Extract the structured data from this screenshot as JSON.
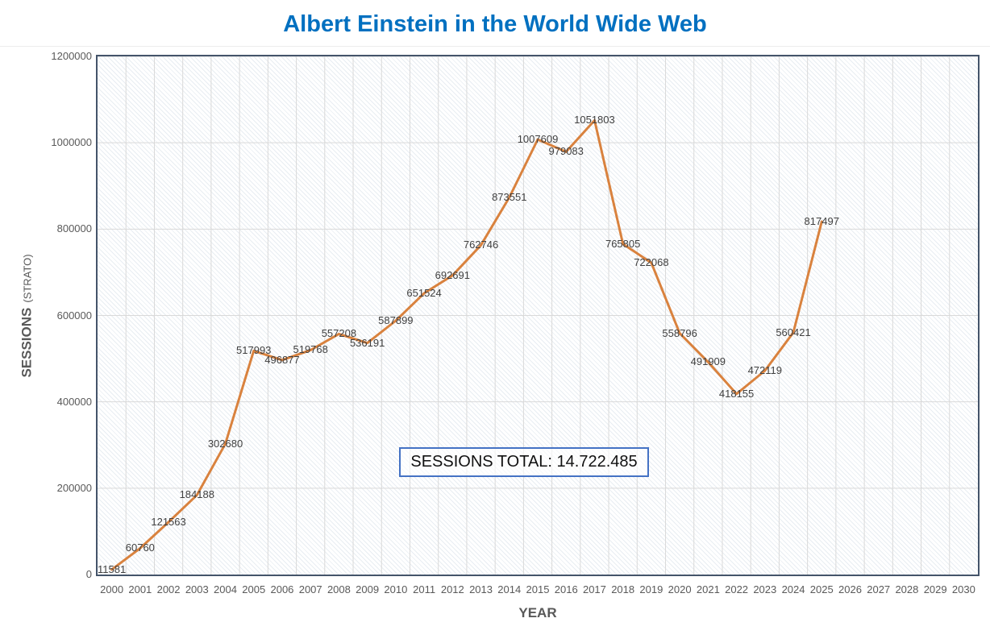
{
  "header": {
    "title": "Albert Einstein in the World Wide Web"
  },
  "axes": {
    "x_title": "YEAR",
    "y_title": "SESSIONS",
    "y_title_note": "(STRATO)"
  },
  "total_box": {
    "text": "SESSIONS TOTAL: 14.722.485"
  },
  "colors": {
    "title": "#0070C0",
    "line": "#D9823E",
    "plot_border": "#44546A",
    "gridline": "#D9D9D9",
    "tick_text": "#595959",
    "point_label_text": "#404040",
    "total_box_border": "#4472C4"
  },
  "chart_data": {
    "type": "line",
    "title": "Albert Einstein in the World Wide Web",
    "xlabel": "YEAR",
    "ylabel": "SESSIONS (STRATO)",
    "x_categories": [
      "2000",
      "2001",
      "2002",
      "2003",
      "2004",
      "2005",
      "2006",
      "2007",
      "2008",
      "2009",
      "2010",
      "2011",
      "2012",
      "2013",
      "2014",
      "2015",
      "2016",
      "2017",
      "2018",
      "2019",
      "2020",
      "2021",
      "2022",
      "2023",
      "2024",
      "2025",
      "2026",
      "2027",
      "2028",
      "2029",
      "2030"
    ],
    "series": [
      {
        "name": "Sessions",
        "x": [
          "2000",
          "2001",
          "2002",
          "2003",
          "2004",
          "2005",
          "2006",
          "2007",
          "2008",
          "2009",
          "2010",
          "2011",
          "2012",
          "2013",
          "2014",
          "2015",
          "2016",
          "2017",
          "2018",
          "2019",
          "2020",
          "2021",
          "2022",
          "2023",
          "2024",
          "2025"
        ],
        "values": [
          11581,
          60760,
          121563,
          184188,
          302680,
          517993,
          496877,
          519768,
          557208,
          536191,
          587899,
          651524,
          692691,
          762746,
          873551,
          1007609,
          979083,
          1051803,
          765805,
          722068,
          558796,
          491909,
          418155,
          472119,
          560421,
          817497
        ]
      }
    ],
    "ylim": [
      0,
      1200000
    ],
    "yticks": [
      0,
      200000,
      400000,
      600000,
      800000,
      1000000,
      1200000
    ],
    "grid": true,
    "legend_position": "none",
    "data_labels": "center",
    "annotation": "SESSIONS TOTAL: 14.722.485"
  }
}
